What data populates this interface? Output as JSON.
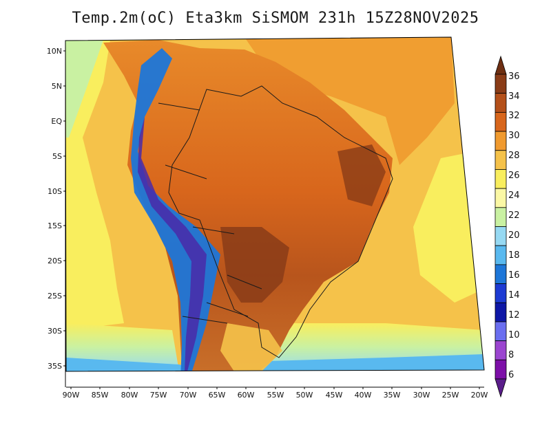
{
  "title": "Temp.2m(oC) Eta3km SiSMOM 231h 15Z28NOV2025",
  "variable": "Temp.2m",
  "units": "oC",
  "model": "Eta3km SiSMOM",
  "forecast_hour": "231h",
  "valid_time": "15Z28NOV2025",
  "lat_labels": [
    "10N",
    "5N",
    "EQ",
    "5S",
    "10S",
    "15S",
    "20S",
    "25S",
    "30S",
    "35S"
  ],
  "lon_labels": [
    "90W",
    "85W",
    "80W",
    "75W",
    "70W",
    "65W",
    "60W",
    "55W",
    "50W",
    "45W",
    "40W",
    "35W",
    "30W",
    "25W",
    "20W"
  ],
  "colorbar": {
    "values": [
      "36",
      "34",
      "32",
      "30",
      "28",
      "26",
      "24",
      "22",
      "20",
      "18",
      "16",
      "14",
      "12",
      "10",
      "8",
      "6"
    ],
    "colors": [
      "#6e2f12",
      "#8a3c17",
      "#b4501a",
      "#d8661c",
      "#f09a2f",
      "#f5c24a",
      "#f9ee5e",
      "#fbf8a5",
      "#c9f1a2",
      "#96d9f3",
      "#59b9ef",
      "#1d76d8",
      "#1d3bd3",
      "#0e17a6",
      "#6a6ef0",
      "#9b45d0",
      "#7d0fa8",
      "#5a1d8a"
    ]
  }
}
